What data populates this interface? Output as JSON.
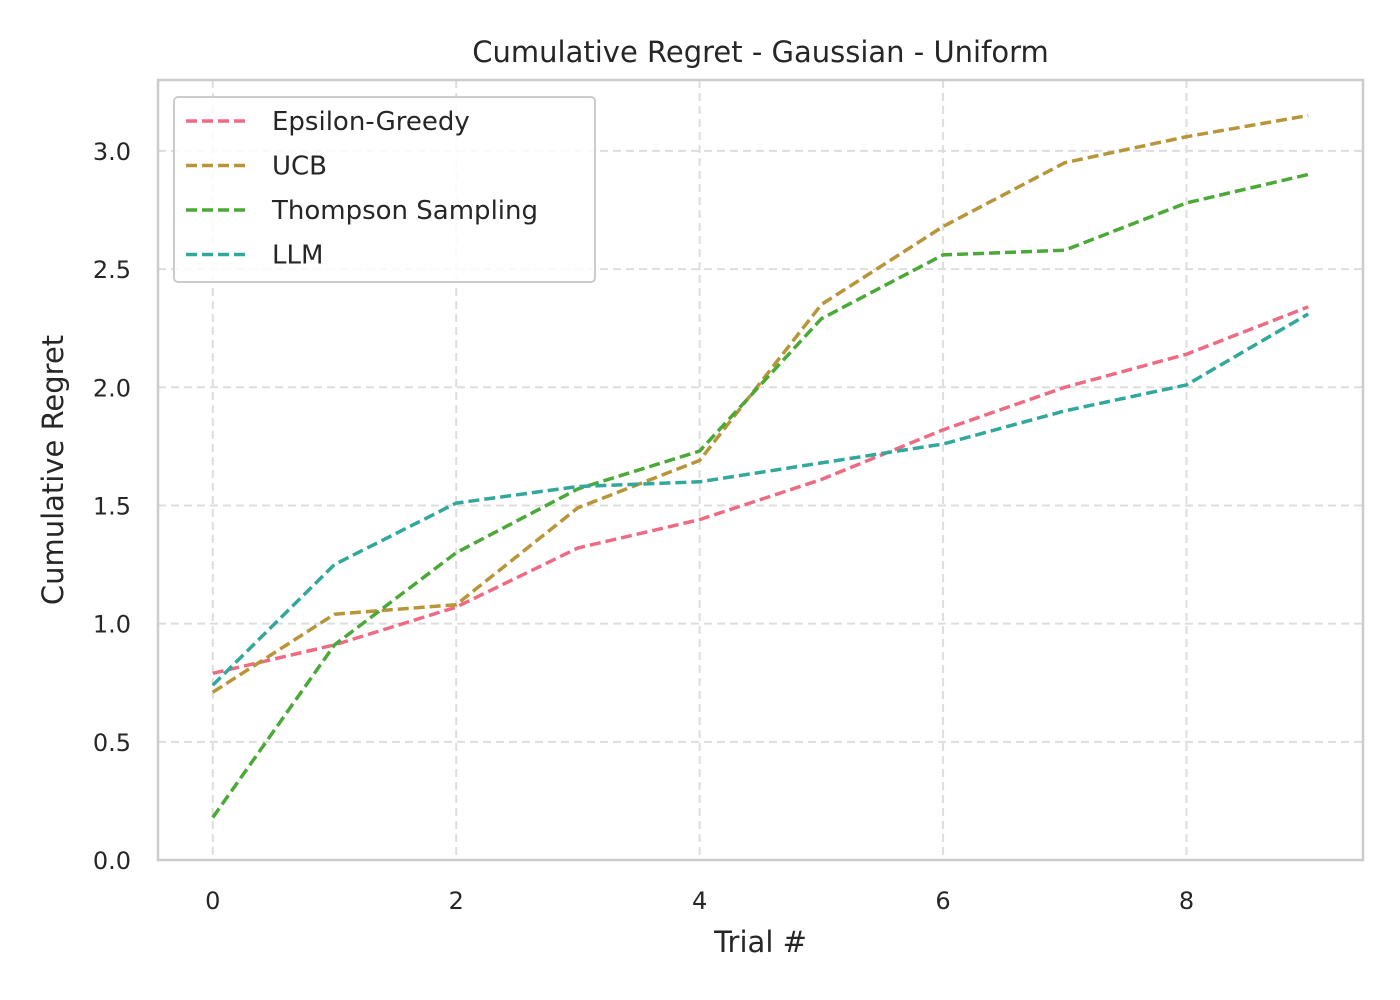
{
  "chart_data": {
    "type": "line",
    "title": "Cumulative Regret - Gaussian - Uniform",
    "xlabel": "Trial #",
    "ylabel": "Cumulative Regret",
    "x": [
      0,
      1,
      2,
      3,
      4,
      5,
      6,
      7,
      8,
      9
    ],
    "xlim": [
      -0.45,
      9.45
    ],
    "ylim": [
      0.0,
      3.3
    ],
    "xticks": [
      0,
      2,
      4,
      6,
      8
    ],
    "yticks": [
      0.0,
      0.5,
      1.0,
      1.5,
      2.0,
      2.5,
      3.0
    ],
    "xtick_labels": [
      "0",
      "2",
      "4",
      "6",
      "8"
    ],
    "ytick_labels": [
      "0.0",
      "0.5",
      "1.0",
      "1.5",
      "2.0",
      "2.5",
      "3.0"
    ],
    "grid": true,
    "line_style": "dashed",
    "legend_position": "upper-left",
    "series": [
      {
        "name": "Epsilon-Greedy",
        "color": "#ee6b84",
        "values": [
          0.79,
          0.91,
          1.07,
          1.32,
          1.44,
          1.61,
          1.82,
          2.0,
          2.14,
          2.34
        ]
      },
      {
        "name": "UCB",
        "color": "#b89538",
        "values": [
          0.71,
          1.04,
          1.08,
          1.49,
          1.69,
          2.35,
          2.68,
          2.95,
          3.06,
          3.15
        ]
      },
      {
        "name": "Thompson Sampling",
        "color": "#4ba938",
        "values": [
          0.18,
          0.91,
          1.3,
          1.57,
          1.73,
          2.29,
          2.56,
          2.58,
          2.78,
          2.9
        ]
      },
      {
        "name": "LLM",
        "color": "#32a79b",
        "values": [
          0.74,
          1.25,
          1.51,
          1.58,
          1.6,
          1.68,
          1.76,
          1.9,
          2.01,
          2.31
        ]
      }
    ]
  }
}
